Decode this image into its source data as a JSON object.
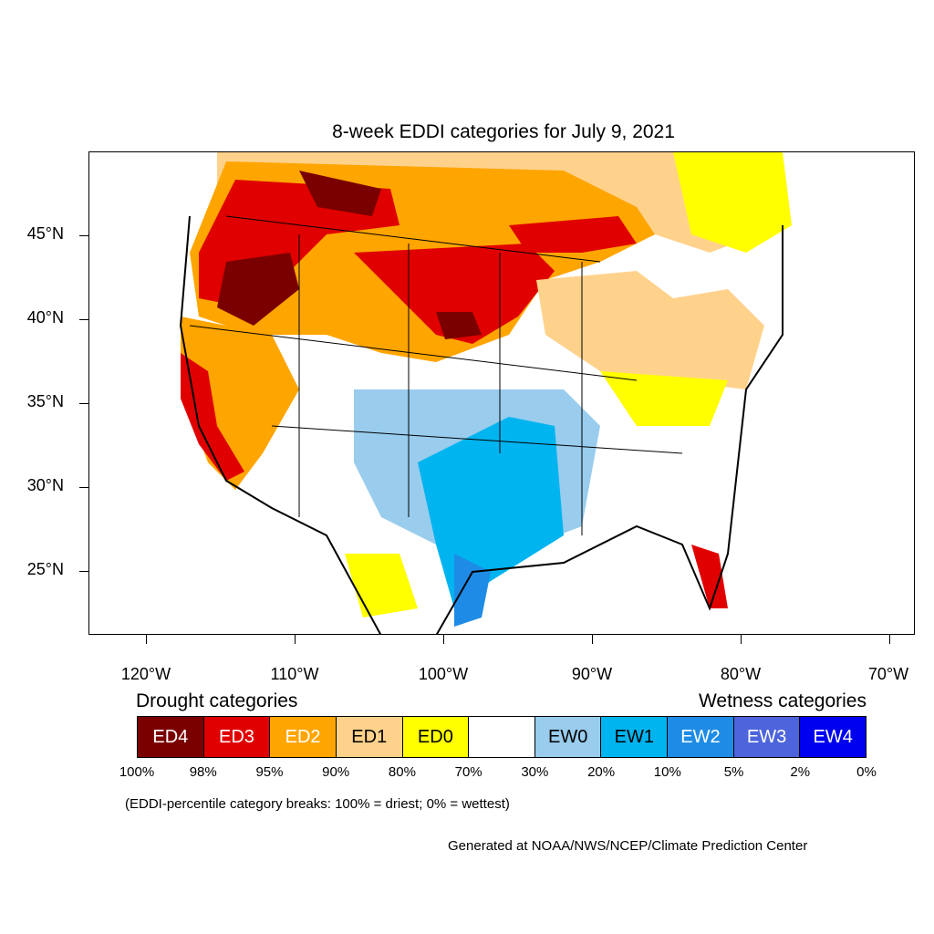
{
  "title": "8-week EDDI categories for July 9, 2021",
  "lat_labels": [
    "45°N",
    "40°N",
    "35°N",
    "30°N",
    "25°N"
  ],
  "lon_labels": [
    "120°W",
    "110°W",
    "100°W",
    "90°W",
    "80°W",
    "70°W"
  ],
  "legend": {
    "drought_heading": "Drought categories",
    "wetness_heading": "Wetness categories",
    "categories": [
      {
        "label": "ED4",
        "color": "#7a0000",
        "text_color": "#ffffff"
      },
      {
        "label": "ED3",
        "color": "#e00000",
        "text_color": "#ffffff"
      },
      {
        "label": "ED2",
        "color": "#ffa500",
        "text_color": "#ffffff"
      },
      {
        "label": "ED1",
        "color": "#ffd28c",
        "text_color": "#000000"
      },
      {
        "label": "ED0",
        "color": "#ffff00",
        "text_color": "#000000"
      },
      {
        "label": "",
        "color": "#ffffff",
        "text_color": "#000000"
      },
      {
        "label": "EW0",
        "color": "#99cced",
        "text_color": "#000000"
      },
      {
        "label": "EW1",
        "color": "#00b4f0",
        "text_color": "#000000"
      },
      {
        "label": "EW2",
        "color": "#1e8ce6",
        "text_color": "#ffffff"
      },
      {
        "label": "EW3",
        "color": "#4e64dc",
        "text_color": "#ffffff"
      },
      {
        "label": "EW4",
        "color": "#0000f0",
        "text_color": "#ffffff"
      }
    ],
    "percentiles": [
      "100%",
      "98%",
      "95%",
      "90%",
      "80%",
      "70%",
      "30%",
      "20%",
      "10%",
      "5%",
      "2%",
      "0%"
    ]
  },
  "note": "(EDDI-percentile category breaks: 100% = driest; 0% = wettest)",
  "credit": "Generated at NOAA/NWS/NCEP/Climate Prediction Center"
}
